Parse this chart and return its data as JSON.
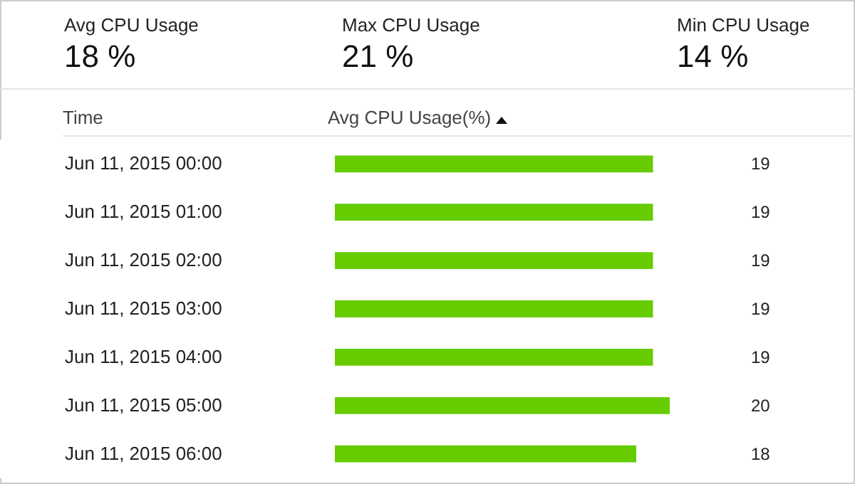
{
  "chart_data": [
    {
      "type": "other",
      "annotations": [
        "Avg CPU Usage",
        "18 %",
        "Max CPU Usage",
        "21 %",
        "Min CPU Usage",
        "14 %"
      ]
    },
    {
      "type": "bar",
      "orientation": "horizontal",
      "ylabel": "Time",
      "xlabel": "Avg CPU Usage(%)",
      "categories": [
        "Jun 11, 2015 00:00",
        "Jun 11, 2015 01:00",
        "Jun 11, 2015 02:00",
        "Jun 11, 2015 03:00",
        "Jun 11, 2015 04:00",
        "Jun 11, 2015 05:00",
        "Jun 11, 2015 06:00"
      ],
      "values": [
        19,
        19,
        19,
        19,
        19,
        20,
        18
      ],
      "color": "#66cc00",
      "data_labels": true
    }
  ]
}
